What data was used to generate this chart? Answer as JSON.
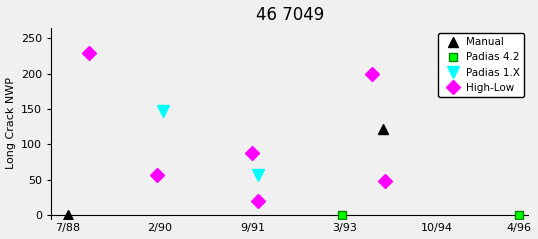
{
  "title": "46 7049",
  "ylabel": "Long Crack NWP",
  "xlim": [
    -0.3,
    8.5
  ],
  "ylim": [
    -5,
    265
  ],
  "yticks": [
    0,
    50,
    100,
    150,
    200,
    250
  ],
  "xtick_positions": [
    0,
    1.7,
    3.4,
    5.1,
    6.8,
    8.3
  ],
  "xtick_labels": [
    "7/88",
    "2/90",
    "9/91",
    "3/93",
    "10/94",
    "4/96"
  ],
  "series": {
    "Manual": {
      "x": [
        0,
        5.8
      ],
      "y": [
        0,
        122
      ]
    },
    "Padias 4.2": {
      "x": [
        5.05,
        8.3
      ],
      "y": [
        0,
        0
      ]
    },
    "Padias 1.X": {
      "x": [
        1.75,
        3.5
      ],
      "y": [
        148,
        57
      ]
    },
    "High-Low": {
      "x": [
        0.4,
        1.65,
        3.4,
        3.5,
        5.6,
        5.85
      ],
      "y": [
        230,
        57,
        88,
        20,
        200,
        48
      ]
    }
  },
  "manual_color": "black",
  "padias42_color": "#00ee00",
  "padias1x_color": "cyan",
  "highlow_color": "magenta",
  "background_color": "#f0f0f0",
  "plot_background": "#f0f0f0",
  "title_fontsize": 12,
  "tick_fontsize": 8,
  "ylabel_fontsize": 8
}
